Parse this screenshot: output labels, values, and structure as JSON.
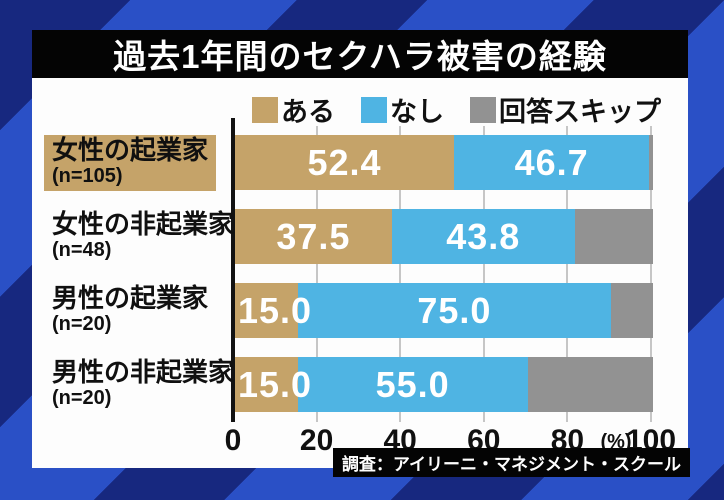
{
  "title": "過去1年間のセクハラ被害の経験",
  "credit": "調査：アイリーニ・マネジメント・スクール",
  "colors": {
    "background_stripe_dark": "#17287f",
    "background_stripe_bright": "#2a50c6",
    "panel": "#fdfdfd",
    "title_bar": "#040404",
    "bar_aru": "#c5a369",
    "bar_nashi": "#4fb4e3",
    "bar_skip": "#929292",
    "highlight_box": "#c5a369",
    "value_text": "#ffffff"
  },
  "chart_data": {
    "type": "bar",
    "orientation": "horizontal-stacked",
    "title": "過去1年間のセクハラ被害の経験",
    "legend": [
      {
        "label": "ある",
        "color": "#c5a369"
      },
      {
        "label": "なし",
        "color": "#4fb4e3"
      },
      {
        "label": "回答スキップ",
        "color": "#929292"
      }
    ],
    "legend_position": "top",
    "categories": [
      "女性の起業家",
      "女性の非起業家",
      "男性の起業家",
      "男性の非起業家"
    ],
    "n_labels": [
      "(n=105)",
      "(n=48)",
      "(n=20)",
      "(n=20)"
    ],
    "series": [
      {
        "name": "ある",
        "values": [
          52.4,
          37.5,
          15.0,
          15.0
        ]
      },
      {
        "name": "なし",
        "values": [
          46.7,
          43.8,
          75.0,
          55.0
        ]
      },
      {
        "name": "回答スキップ",
        "values": [
          0.9,
          18.7,
          10.0,
          30.0
        ]
      }
    ],
    "value_labels_shown_for": [
      "ある",
      "なし"
    ],
    "x_ticks": [
      0,
      20,
      40,
      60,
      80,
      100
    ],
    "x_unit": "(%)",
    "xlim": [
      0,
      100
    ],
    "grid": true,
    "highlighted_category": "女性の起業家"
  }
}
